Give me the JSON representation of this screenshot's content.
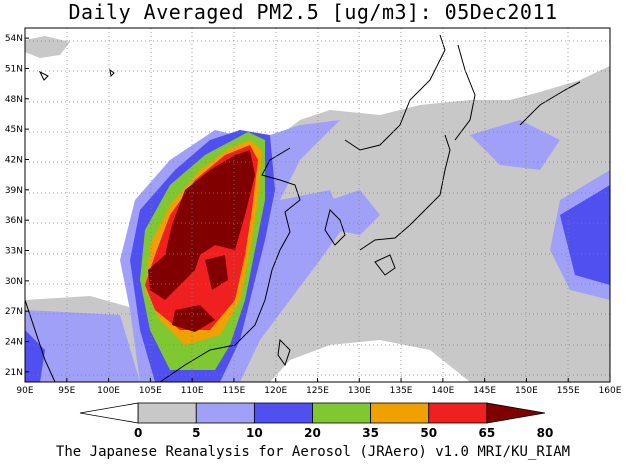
{
  "title": "Daily Averaged PM2.5 [ug/m3]: 05Dec2011",
  "footer": "The Japanese Reanalysis for Aerosol (JRAero) v1.0 MRI/KU_RIAM",
  "map": {
    "lon_range": [
      90,
      160
    ],
    "lat_range": [
      20,
      55
    ],
    "lon_ticks": [
      "90E",
      "95E",
      "100E",
      "105E",
      "110E",
      "115E",
      "120E",
      "125E",
      "130E",
      "135E",
      "140E",
      "145E",
      "150E",
      "155E",
      "160E"
    ],
    "lat_ticks": [
      "21N",
      "24N",
      "27N",
      "30N",
      "33N",
      "36N",
      "39N",
      "42N",
      "45N",
      "48N",
      "51N",
      "54N"
    ],
    "grid": "dotted"
  },
  "colorbar": {
    "levels": [
      "0",
      "5",
      "10",
      "20",
      "35",
      "50",
      "65",
      "80"
    ],
    "colors": [
      "#ffffff",
      "#c8c8c8",
      "#a0a0f8",
      "#5050f0",
      "#80c832",
      "#f0a000",
      "#f02020",
      "#800000"
    ]
  }
}
